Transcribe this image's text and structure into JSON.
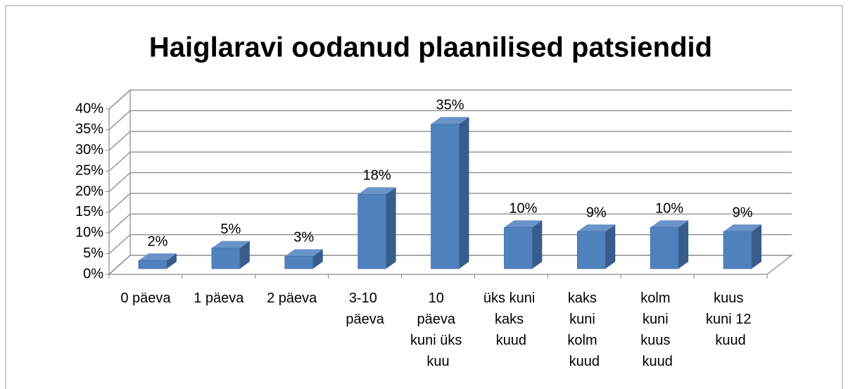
{
  "chart_data": {
    "type": "bar3d",
    "title": "Haiglaravi oodanud plaanilised patsiendid",
    "categories": [
      "0 päeva",
      "1 päeva",
      "2 päeva",
      "3-10 päeva",
      "10 päeva kuni üks kuu",
      "üks kuni kaks kuud",
      "kaks kuni kolm kuud",
      "kolm kuni kuus kuud",
      "kuus kuni 12 kuud"
    ],
    "values": [
      2,
      5,
      3,
      18,
      35,
      10,
      9,
      10,
      9
    ],
    "value_labels": [
      "2%",
      "5%",
      "3%",
      "18%",
      "35%",
      "10%",
      "9%",
      "10%",
      "9%"
    ],
    "color": "#4f81bd",
    "ylim": [
      0,
      40
    ],
    "yticks": [
      {
        "value": 0,
        "label": "0%"
      },
      {
        "value": 5,
        "label": "5%"
      },
      {
        "value": 10,
        "label": "10%"
      },
      {
        "value": 15,
        "label": "15%"
      },
      {
        "value": 20,
        "label": "20%"
      },
      {
        "value": 25,
        "label": "25%"
      },
      {
        "value": 30,
        "label": "30%"
      },
      {
        "value": 35,
        "label": "35%"
      },
      {
        "value": 40,
        "label": "40%"
      }
    ],
    "grid": true
  }
}
